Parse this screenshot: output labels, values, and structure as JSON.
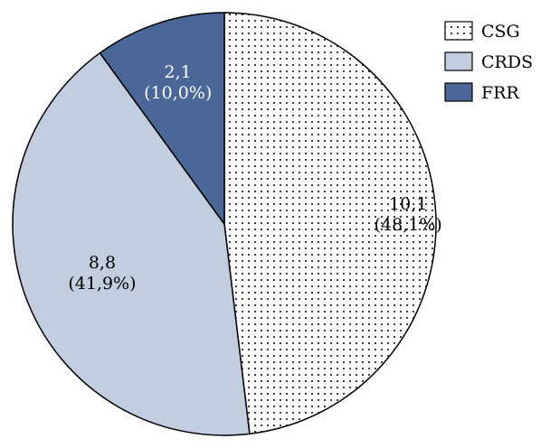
{
  "chart_data": {
    "type": "pie",
    "title": "",
    "slices": [
      {
        "name": "CSG",
        "value": 10.1,
        "value_label": "10,1",
        "percent_label": "(48,1%)",
        "percent": 48.1,
        "fill": "pattern-dots",
        "label_color": "#000000"
      },
      {
        "name": "CRDS",
        "value": 8.8,
        "value_label": "8,8",
        "percent_label": "(41,9%)",
        "percent": 41.9,
        "fill": "#c3cde0",
        "label_color": "#000000"
      },
      {
        "name": "FRR",
        "value": 2.1,
        "value_label": "2,1",
        "percent_label": "(10,0%)",
        "percent": 10.0,
        "fill": "#4a6798",
        "label_color": "#ffffff"
      }
    ],
    "start_angle_deg": 0,
    "direction": "clockwise",
    "legend": {
      "position": "top-right",
      "entries": [
        "CSG",
        "CRDS",
        "FRR"
      ]
    }
  }
}
